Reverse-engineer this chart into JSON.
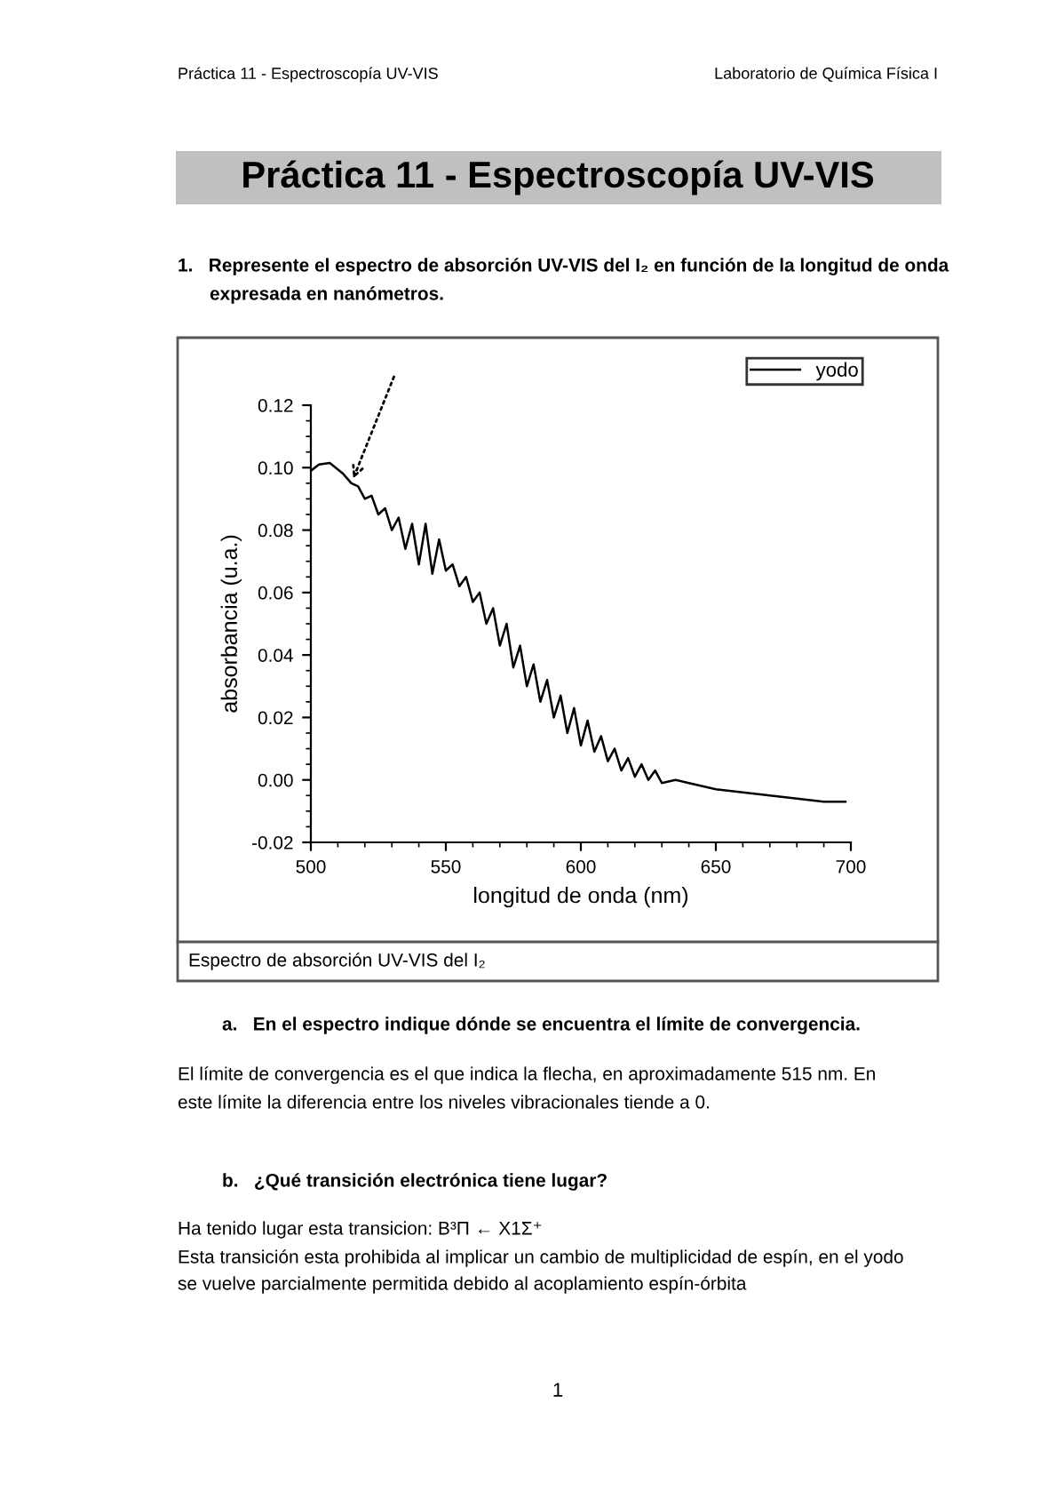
{
  "chart_data": {
    "type": "line",
    "title": "Práctica 11 - Espectroscopía UV-VIS",
    "xlabel": "longitud de onda (nm)",
    "ylabel": "absorbancia (u.a.)",
    "x": [
      500,
      503,
      507,
      512,
      515,
      517.5,
      520,
      522.5,
      525,
      527.5,
      530,
      532.5,
      535,
      537.5,
      540,
      542.5,
      545,
      547.5,
      550,
      552.5,
      555,
      557.5,
      560,
      562.5,
      565,
      567.5,
      570,
      572.5,
      575,
      577.5,
      580,
      582.5,
      585,
      587.5,
      590,
      592.5,
      595,
      597.5,
      600,
      602.5,
      605,
      607.5,
      610,
      612.5,
      615,
      617.5,
      620,
      622.5,
      625,
      627.5,
      630,
      635,
      640,
      650,
      660,
      670,
      680,
      690,
      698
    ],
    "series": [
      {
        "name": "yodo",
        "color": "#000000",
        "values": [
          0.099,
          0.101,
          0.1015,
          0.098,
          0.095,
          0.094,
          0.09,
          0.091,
          0.085,
          0.087,
          0.08,
          0.084,
          0.074,
          0.082,
          0.069,
          0.082,
          0.066,
          0.077,
          0.067,
          0.069,
          0.062,
          0.065,
          0.057,
          0.06,
          0.05,
          0.055,
          0.043,
          0.05,
          0.036,
          0.043,
          0.03,
          0.037,
          0.025,
          0.032,
          0.02,
          0.027,
          0.015,
          0.023,
          0.011,
          0.019,
          0.009,
          0.014,
          0.006,
          0.01,
          0.003,
          0.007,
          0.001,
          0.005,
          0.0,
          0.003,
          -0.001,
          0.0,
          -0.001,
          -0.003,
          -0.004,
          -0.005,
          -0.006,
          -0.007,
          -0.007
        ]
      }
    ],
    "xlim": [
      500,
      700
    ],
    "xticks": [
      500,
      550,
      600,
      650,
      700
    ],
    "ylim": [
      -0.02,
      0.12
    ],
    "yticks": [
      {
        "value": -0.02,
        "label": "-0.02"
      },
      {
        "value": 0.0,
        "label": "0.00"
      },
      {
        "value": 0.02,
        "label": "0.02"
      },
      {
        "value": 0.04,
        "label": "0.04"
      },
      {
        "value": 0.06,
        "label": "0.06"
      },
      {
        "value": 0.08,
        "label": "0.08"
      },
      {
        "value": 0.1,
        "label": "0.10"
      },
      {
        "value": 0.12,
        "label": "0.12"
      }
    ],
    "grid": false,
    "legend": "top right",
    "marker": "none",
    "line_style": "solid",
    "annotations": [
      "Práctica 11 - Espectroscopía UV-VIS",
      "Laboratorio de Química Física I",
      "1.   Represente el espectro de absorción UV-VIS del I₂ en función de la longitud de onda",
      "expresada en nanómetros.",
      "Espectro de absorción UV-VIS del I₂",
      "a.   En el espectro indique dónde se encuentra el límite de convergencia.",
      "El límite de convergencia es el que indica la flecha, en aproximadamente 515 nm. En",
      "este límite la diferencia entre los niveles vibracionales tiende a 0.",
      "b.   ¿Qué transición electrónica tiene lugar?",
      "Ha tenido lugar esta transicion: B³Π ← X1Σ⁺",
      "Esta transición esta prohibida al implicar un cambio de multiplicidad de espín, en el yodo",
      "se vuelve parcialmente permitida debido al acoplamiento espín-órbita",
      "1"
    ]
  }
}
